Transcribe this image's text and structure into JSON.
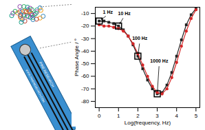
{
  "chart_data": {
    "type": "line",
    "x_label": "Log(frequency, Hz)",
    "y_label": "Phase Angle / °",
    "x": [
      0,
      0.25,
      0.5,
      0.75,
      1,
      1.25,
      1.5,
      1.75,
      2,
      2.25,
      2.5,
      2.75,
      3,
      3.25,
      3.5,
      3.75,
      4,
      4.25,
      4.5,
      4.75,
      5
    ],
    "series": [
      {
        "color": "#222222",
        "marker": "square",
        "values": [
          -16,
          -16,
          -17,
          -18,
          -20,
          -23,
          -28,
          -35,
          -44,
          -54,
          -63,
          -70,
          -74,
          -73,
          -67,
          -57,
          -44,
          -31,
          -19,
          -11,
          -6
        ]
      },
      {
        "color": "#d62728",
        "marker": "circle",
        "values": [
          -19,
          -20,
          -20,
          -21,
          -22,
          -24,
          -28,
          -34,
          -42,
          -51,
          -60,
          -68,
          -73,
          -74,
          -70,
          -61,
          -49,
          -36,
          -24,
          -14,
          -7
        ]
      }
    ],
    "annotations": [
      {
        "text": "1 Hz",
        "x": 0.45,
        "y": -9,
        "target_x": 0,
        "target_y": -16
      },
      {
        "text": "10 Hz",
        "x": 1.3,
        "y": -10,
        "target_x": 1,
        "target_y": -20
      },
      {
        "text": "100 Hz",
        "x": 2.1,
        "y": -30,
        "target_x": 2,
        "target_y": -44
      },
      {
        "text": "1000 Hz",
        "x": 3.1,
        "y": -48,
        "target_x": 3,
        "target_y": -74
      }
    ],
    "xlim": [
      -0.2,
      5.2
    ],
    "xticks": [
      0,
      1,
      2,
      3,
      4,
      5
    ],
    "ylim": [
      -85,
      -5
    ],
    "yticks": [
      -80,
      -70,
      -60,
      -50,
      -40,
      -30,
      -20,
      -10
    ],
    "grid": false
  },
  "sensor_labels": [
    "PINE RESEARCH",
    "WWW.PINERESEARCH.COM"
  ]
}
